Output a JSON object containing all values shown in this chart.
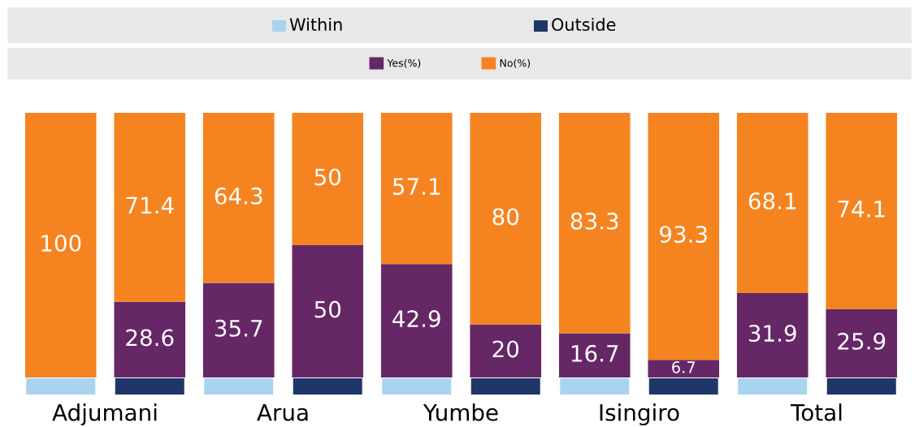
{
  "chart_data": {
    "type": "bar",
    "stacked": true,
    "legend": "top",
    "categories": [
      null,
      null,
      null,
      null,
      null,
      null,
      null,
      null,
      null,
      null
    ],
    "annotations": [
      "Within",
      "Outside",
      "Adjumani",
      "Arua",
      "Yumbe",
      "Isingiro",
      "Total"
    ],
    "series": [
      {
        "name": "Yes(%)",
        "color": "#662766",
        "values": [
          0,
          28.6,
          35.7,
          50,
          42.9,
          20,
          16.7,
          6.7,
          31.9,
          25.9
        ],
        "value_labels": [
          null,
          "28.6",
          "35.7",
          "50",
          "42.9",
          "20",
          "16.7",
          "6.7",
          "31.9",
          "25.9"
        ]
      },
      {
        "name": "No(%)",
        "color": "#f58420",
        "values": [
          100,
          71.4,
          64.3,
          50,
          57.1,
          80,
          83.3,
          93.3,
          68.1,
          74.1
        ],
        "value_labels": [
          "100",
          "71.4",
          "64.3",
          "50",
          "57.1",
          "80",
          "83.3",
          "93.3",
          "68.1",
          "74.1"
        ]
      }
    ]
  }
}
